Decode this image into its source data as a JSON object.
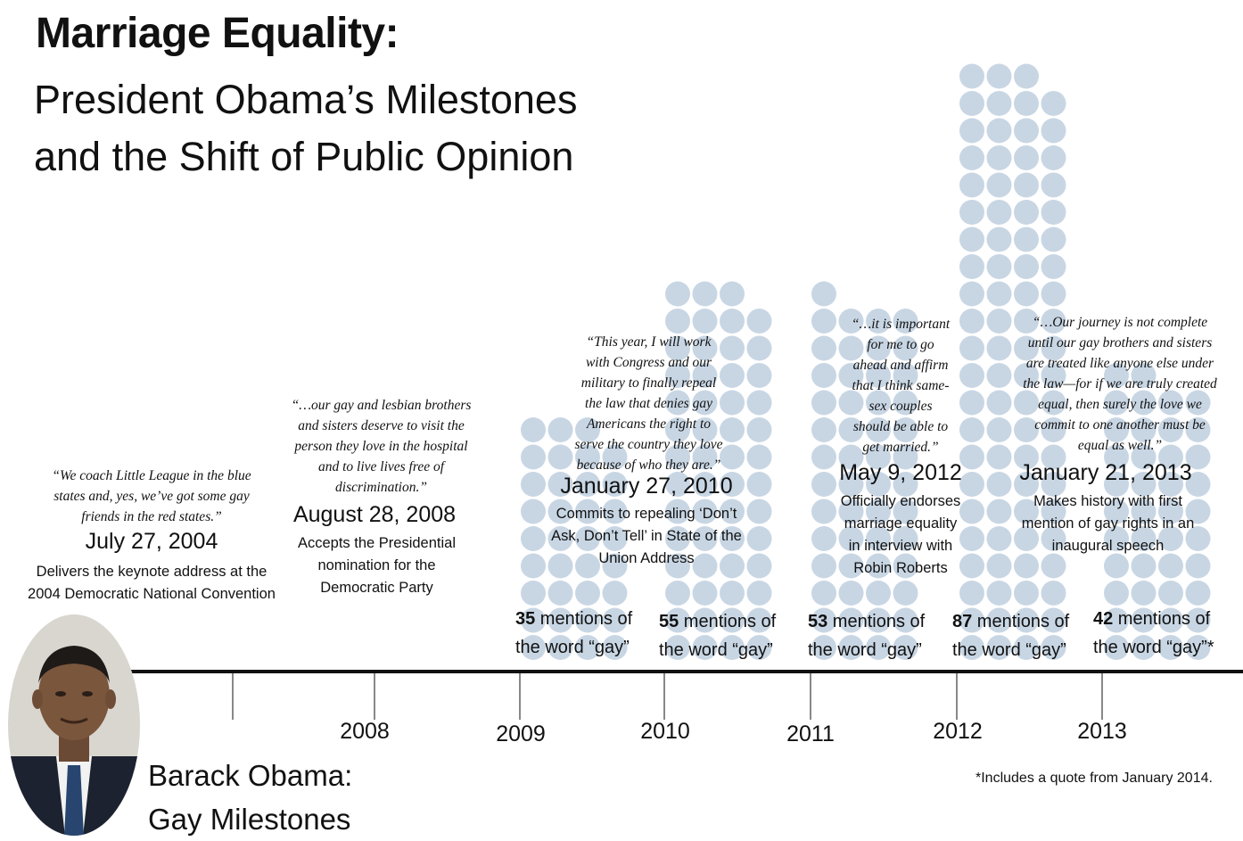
{
  "header": {
    "title": "Marriage Equality:",
    "subtitle_line1": "President Obama’s Milestones",
    "subtitle_line2": "and the Shift of Public Opinion"
  },
  "milestones": [
    {
      "quote": [
        "“We coach Little League in the blue",
        "states and, yes, we’ve got some gay",
        "friends in the red states.”"
      ],
      "date": "July 27, 2004",
      "desc": [
        "Delivers the keynote address at the",
        "2004 Democratic National Convention"
      ]
    },
    {
      "quote": [
        "“…our gay and lesbian brothers",
        "and sisters deserve to visit the",
        "person they love in the hospital",
        "and to live lives free of",
        "discrimination.”"
      ],
      "date": "August 28, 2008",
      "desc": [
        "Accepts the Presidential",
        "nomination for the",
        "Democratic Party"
      ]
    },
    {
      "quote": [
        "“This year, I will work",
        "with Congress and our",
        "military to finally repeal",
        "the law that denies gay",
        "Americans the right to",
        "serve the country they love",
        "because of who they are.”"
      ],
      "date": "January 27, 2010",
      "desc": [
        "Commits to repealing ‘Don’t",
        "Ask, Don’t Tell’ in State of the",
        "Union Address"
      ]
    },
    {
      "quote": [
        "“…it is important",
        "for me to go",
        "ahead and affirm",
        "that I think same-",
        "sex couples",
        "should be able to",
        "get married.”"
      ],
      "date": "May 9, 2012",
      "desc": [
        "Officially endorses",
        "marriage equality",
        "in interview with",
        "Robin Roberts"
      ]
    },
    {
      "quote": [
        "“…Our journey is not complete",
        "until our gay brothers and sisters",
        "are treated like anyone else under",
        "the law—for if we are truly created",
        "equal, then surely the love we",
        "commit to one another must be",
        "equal as well.”"
      ],
      "date": "January 21, 2013",
      "desc": [
        "Makes history with first",
        "mention of gay rights in an",
        "inaugural speech"
      ]
    }
  ],
  "chart_data": {
    "type": "bar",
    "description_style": "pictograph of dots, one dot per mention",
    "categories": [
      "2009",
      "2010",
      "2011",
      "2012",
      "2013"
    ],
    "series": [
      {
        "values": [
          35,
          55,
          53,
          87,
          42
        ],
        "labels": [
          {
            "number": "35",
            "text": " mentions of",
            "line2": "the word “gay”"
          },
          {
            "number": "55",
            "text": " mentions of",
            "line2": "the word “gay”"
          },
          {
            "number": "53",
            "text": " mentions of",
            "line2": "the word “gay”"
          },
          {
            "number": "87",
            "text": " mentions of",
            "line2": "the word “gay”"
          },
          {
            "number": "42",
            "text": " mentions of",
            "line2": "the word “gay”*"
          }
        ]
      }
    ],
    "dot_color": "#c8d6e4"
  },
  "axis": {
    "years": [
      "2008",
      "2009",
      "2010",
      "2011",
      "2012",
      "2013"
    ]
  },
  "caption": {
    "line1": "Barack Obama:",
    "line2": "Gay Milestones"
  },
  "footnote": "*Includes a quote from January 2014."
}
